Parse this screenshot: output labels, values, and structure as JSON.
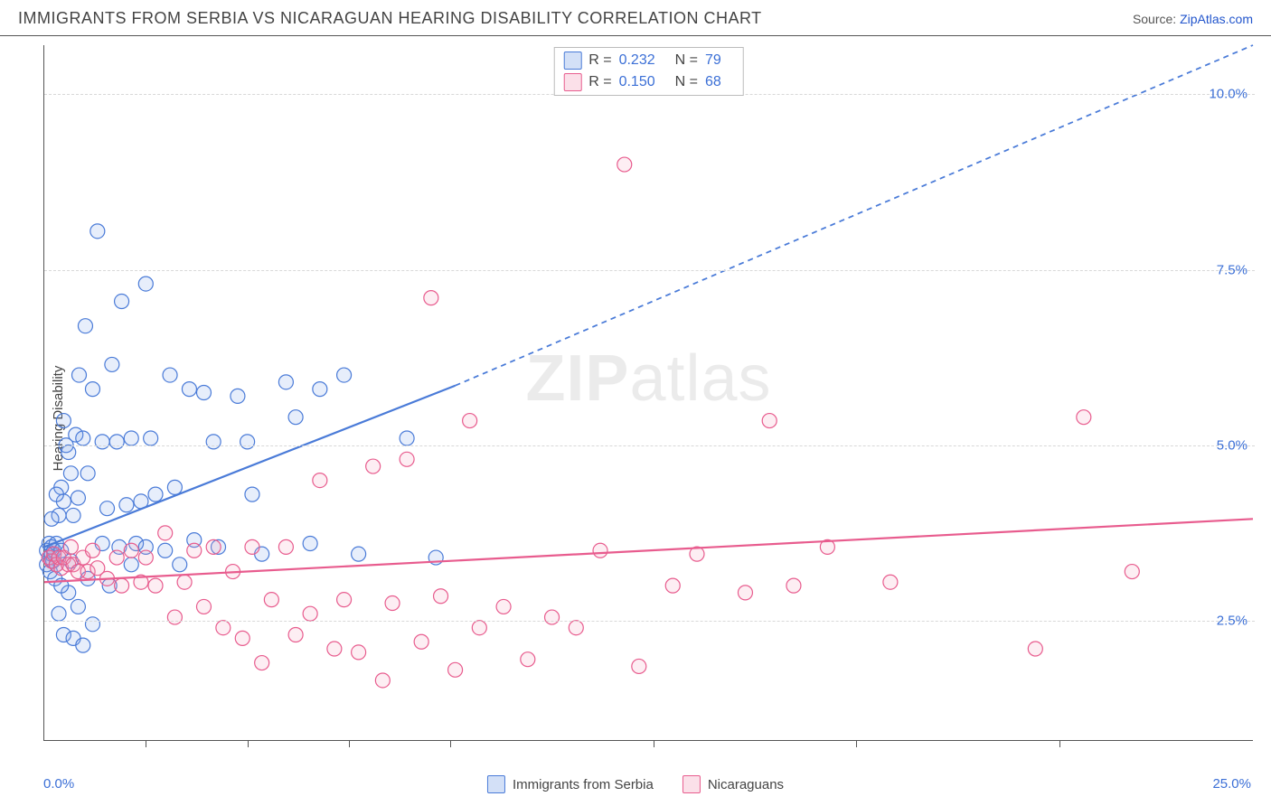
{
  "header": {
    "title": "IMMIGRANTS FROM SERBIA VS NICARAGUAN HEARING DISABILITY CORRELATION CHART",
    "source_prefix": "Source: ",
    "source_link": "ZipAtlas.com"
  },
  "watermark": {
    "zip": "ZIP",
    "atlas": "atlas"
  },
  "ylabel": "Hearing Disability",
  "chart": {
    "type": "scatter",
    "xlim": [
      0,
      25
    ],
    "ylim": [
      0.8,
      10.7
    ],
    "background_color": "#ffffff",
    "grid_color": "#d8d8d8",
    "axis_color": "#555555",
    "ytick_values": [
      2.5,
      5.0,
      7.5,
      10.0
    ],
    "ytick_labels": [
      "2.5%",
      "5.0%",
      "7.5%",
      "10.0%"
    ],
    "ytick_color": "#3b6fd6",
    "xtick_positions": [
      2.1,
      4.2,
      6.3,
      8.4,
      12.6,
      16.8,
      21.0
    ],
    "xaxis_left_label": "0.0%",
    "xaxis_right_label": "25.0%",
    "marker_radius": 8,
    "marker_stroke_width": 1.2,
    "marker_fill_opacity": 0.18,
    "line_width": 2.2,
    "dash_pattern": "6,5"
  },
  "series": [
    {
      "key": "serbia",
      "label": "Immigrants from Serbia",
      "color_stroke": "#4a7bd8",
      "color_fill": "#7aa3e8",
      "r_value": "0.232",
      "n_value": "79",
      "trend": {
        "x1": 0,
        "y1": 3.55,
        "x2": 8.5,
        "y2": 5.85,
        "x2_ext": 25.0,
        "y2_ext": 10.7
      },
      "points": [
        [
          0.05,
          3.5
        ],
        [
          0.05,
          3.3
        ],
        [
          0.1,
          3.4
        ],
        [
          0.1,
          3.6
        ],
        [
          0.12,
          3.2
        ],
        [
          0.15,
          3.55
        ],
        [
          0.15,
          3.45
        ],
        [
          0.18,
          3.35
        ],
        [
          0.2,
          3.5
        ],
        [
          0.22,
          3.1
        ],
        [
          0.25,
          3.6
        ],
        [
          0.25,
          3.3
        ],
        [
          0.3,
          2.6
        ],
        [
          0.3,
          4.0
        ],
        [
          0.35,
          4.4
        ],
        [
          0.35,
          3.5
        ],
        [
          0.4,
          2.3
        ],
        [
          0.4,
          4.2
        ],
        [
          0.45,
          5.0
        ],
        [
          0.5,
          2.9
        ],
        [
          0.5,
          4.9
        ],
        [
          0.55,
          3.35
        ],
        [
          0.6,
          2.25
        ],
        [
          0.6,
          4.0
        ],
        [
          0.65,
          5.15
        ],
        [
          0.7,
          2.7
        ],
        [
          0.7,
          4.25
        ],
        [
          0.72,
          6.0
        ],
        [
          0.8,
          2.15
        ],
        [
          0.8,
          5.1
        ],
        [
          0.85,
          6.7
        ],
        [
          0.9,
          3.1
        ],
        [
          0.9,
          4.6
        ],
        [
          1.0,
          5.8
        ],
        [
          1.0,
          2.45
        ],
        [
          1.1,
          8.05
        ],
        [
          1.2,
          3.6
        ],
        [
          1.2,
          5.05
        ],
        [
          1.3,
          4.1
        ],
        [
          1.35,
          3.0
        ],
        [
          1.4,
          6.15
        ],
        [
          1.5,
          5.05
        ],
        [
          1.55,
          3.55
        ],
        [
          1.6,
          7.05
        ],
        [
          1.7,
          4.15
        ],
        [
          1.8,
          5.1
        ],
        [
          1.8,
          3.3
        ],
        [
          1.9,
          3.6
        ],
        [
          2.0,
          4.2
        ],
        [
          2.1,
          7.3
        ],
        [
          2.1,
          3.55
        ],
        [
          2.2,
          5.1
        ],
        [
          2.3,
          4.3
        ],
        [
          2.5,
          3.5
        ],
        [
          2.6,
          6.0
        ],
        [
          2.7,
          4.4
        ],
        [
          2.8,
          3.3
        ],
        [
          3.0,
          5.8
        ],
        [
          3.1,
          3.65
        ],
        [
          3.3,
          5.75
        ],
        [
          3.5,
          5.05
        ],
        [
          3.6,
          3.55
        ],
        [
          4.0,
          5.7
        ],
        [
          4.2,
          5.05
        ],
        [
          4.3,
          4.3
        ],
        [
          4.5,
          3.45
        ],
        [
          5.0,
          5.9
        ],
        [
          5.2,
          5.4
        ],
        [
          5.5,
          3.6
        ],
        [
          5.7,
          5.8
        ],
        [
          6.2,
          6.0
        ],
        [
          6.5,
          3.45
        ],
        [
          7.5,
          5.1
        ],
        [
          8.1,
          3.4
        ],
        [
          0.15,
          3.95
        ],
        [
          0.25,
          4.3
        ],
        [
          0.35,
          3.0
        ],
        [
          0.4,
          5.35
        ],
        [
          0.55,
          4.6
        ]
      ]
    },
    {
      "key": "nicaraguans",
      "label": "Nicaraguans",
      "color_stroke": "#e85c8e",
      "color_fill": "#f4a3be",
      "r_value": "0.150",
      "n_value": "68",
      "trend": {
        "x1": 0,
        "y1": 3.05,
        "x2": 25.0,
        "y2": 3.95,
        "x2_ext": 25.0,
        "y2_ext": 3.95
      },
      "points": [
        [
          0.1,
          3.4
        ],
        [
          0.15,
          3.35
        ],
        [
          0.2,
          3.45
        ],
        [
          0.25,
          3.3
        ],
        [
          0.3,
          3.4
        ],
        [
          0.35,
          3.25
        ],
        [
          0.4,
          3.4
        ],
        [
          0.5,
          3.3
        ],
        [
          0.55,
          3.55
        ],
        [
          0.6,
          3.3
        ],
        [
          0.7,
          3.2
        ],
        [
          0.8,
          3.4
        ],
        [
          0.9,
          3.2
        ],
        [
          1.0,
          3.5
        ],
        [
          1.1,
          3.25
        ],
        [
          1.3,
          3.1
        ],
        [
          1.5,
          3.4
        ],
        [
          1.6,
          3.0
        ],
        [
          1.8,
          3.5
        ],
        [
          2.0,
          3.05
        ],
        [
          2.1,
          3.4
        ],
        [
          2.3,
          3.0
        ],
        [
          2.5,
          3.75
        ],
        [
          2.7,
          2.55
        ],
        [
          2.9,
          3.05
        ],
        [
          3.1,
          3.5
        ],
        [
          3.3,
          2.7
        ],
        [
          3.5,
          3.55
        ],
        [
          3.7,
          2.4
        ],
        [
          3.9,
          3.2
        ],
        [
          4.1,
          2.25
        ],
        [
          4.3,
          3.55
        ],
        [
          4.5,
          1.9
        ],
        [
          4.7,
          2.8
        ],
        [
          5.0,
          3.55
        ],
        [
          5.2,
          2.3
        ],
        [
          5.5,
          2.6
        ],
        [
          5.7,
          4.5
        ],
        [
          6.0,
          2.1
        ],
        [
          6.2,
          2.8
        ],
        [
          6.5,
          2.05
        ],
        [
          6.8,
          4.7
        ],
        [
          7.0,
          1.65
        ],
        [
          7.2,
          2.75
        ],
        [
          7.5,
          4.8
        ],
        [
          7.8,
          2.2
        ],
        [
          8.0,
          7.1
        ],
        [
          8.2,
          2.85
        ],
        [
          8.5,
          1.8
        ],
        [
          8.8,
          5.35
        ],
        [
          9.0,
          2.4
        ],
        [
          9.5,
          2.7
        ],
        [
          10.0,
          1.95
        ],
        [
          10.5,
          2.55
        ],
        [
          11.0,
          2.4
        ],
        [
          11.5,
          3.5
        ],
        [
          12.0,
          9.0
        ],
        [
          12.3,
          1.85
        ],
        [
          13.0,
          3.0
        ],
        [
          13.5,
          3.45
        ],
        [
          14.5,
          2.9
        ],
        [
          15.0,
          5.35
        ],
        [
          15.5,
          3.0
        ],
        [
          16.2,
          3.55
        ],
        [
          17.5,
          3.05
        ],
        [
          20.5,
          2.1
        ],
        [
          21.5,
          5.4
        ],
        [
          22.5,
          3.2
        ]
      ]
    }
  ],
  "top_legend": {
    "r_label": "R =",
    "n_label": "N ="
  },
  "bottom_legend": {}
}
